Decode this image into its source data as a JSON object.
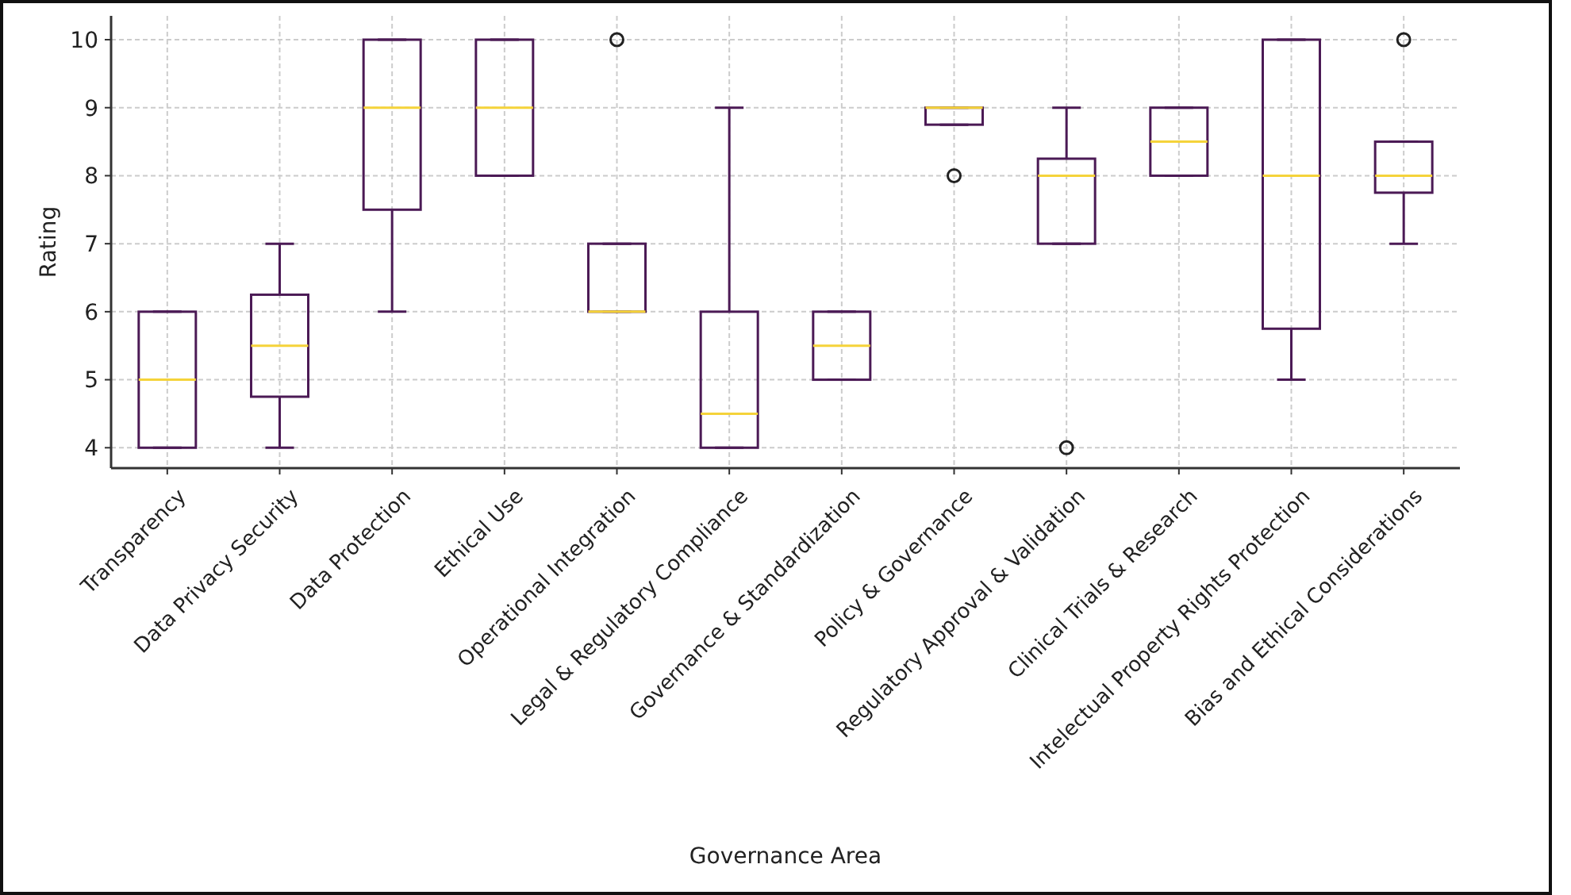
{
  "chart_data": {
    "type": "box",
    "xlabel": "Governance Area",
    "ylabel": "Rating",
    "categories": [
      "Transparency",
      "Data Privacy Security",
      "Data Protection",
      "Ethical Use",
      "Operational Integration",
      "Legal & Regulatory Compliance",
      "Governance & Standardization",
      "Policy & Governance",
      "Regulatory Approval & Validation",
      "Clinical Trials & Research",
      "Intelectual Property Rights Protection",
      "Bias and Ethical Considerations"
    ],
    "series": [
      {
        "color": "#4b1a55",
        "boxes": [
          {
            "low": 4,
            "q1": 4,
            "median": 5,
            "q3": 6,
            "high": 6
          },
          {
            "low": 4,
            "q1": 4.75,
            "median": 5.5,
            "q3": 6.25,
            "high": 7
          },
          {
            "low": 6,
            "q1": 7.5,
            "median": 9,
            "q3": 10,
            "high": 10
          },
          {
            "low": 8,
            "q1": 8,
            "median": 9,
            "q3": 10,
            "high": 10
          },
          {
            "low": 6,
            "q1": 6,
            "median": 6,
            "q3": 7,
            "high": 7,
            "outliers": [
              10
            ]
          },
          {
            "low": 4,
            "q1": 4,
            "median": 4.5,
            "q3": 6,
            "high": 9
          },
          {
            "low": 5,
            "q1": 5,
            "median": 5.5,
            "q3": 6,
            "high": 6
          },
          {
            "low": 8.75,
            "q1": 8.75,
            "median": 9,
            "q3": 9,
            "high": 9,
            "outliers": [
              8
            ]
          },
          {
            "low": 7,
            "q1": 7,
            "median": 8,
            "q3": 8.25,
            "high": 9,
            "outliers": [
              4
            ]
          },
          {
            "low": 8,
            "q1": 8,
            "median": 8.5,
            "q3": 9,
            "high": 9
          },
          {
            "low": 5,
            "q1": 5.75,
            "median": 8,
            "q3": 10,
            "high": 10
          },
          {
            "low": 7,
            "q1": 7.75,
            "median": 8,
            "q3": 8.5,
            "high": 8.5,
            "outliers": [
              10
            ]
          }
        ]
      }
    ],
    "ylim": [
      3.7,
      10.35
    ],
    "yticks": [
      4,
      5,
      6,
      7,
      8,
      9,
      10
    ],
    "grid": true
  }
}
